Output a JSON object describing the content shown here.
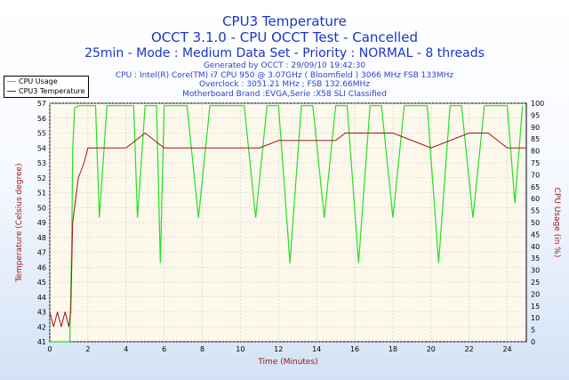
{
  "header": {
    "title": "CPU3 Temperature",
    "subtitle1": "OCCT 3.1.0 - CPU OCCT Test - Cancelled",
    "subtitle2": "25min - Mode : Medium Data Set - Priority : NORMAL - 8 threads",
    "info": [
      "Generated by OCCT : 29/09/10 19:42:30",
      "CPU : Intel(R) Core(TM) i7 CPU 950 @ 3.07GHz ( Bloomfield ) 3066 MHz FSB 133MHz",
      "Overclock : 3051.21 MHz ; FSB 132.66MHz",
      "Motherboard Brand :EVGA,Serie :X58 SLI Classified"
    ]
  },
  "colors": {
    "cpu_usage": "#22e022",
    "temperature": "#a01515",
    "plot_bg": "#fdf8ec",
    "axis_text": "#a01515",
    "title": "#1a35c8"
  },
  "chart_data": {
    "type": "line",
    "title": "CPU3 Temperature",
    "xlabel": "Time (Minutes)",
    "ylabel": "Temperature (Celsius degree)",
    "y2label": "CPU Usage (in %)",
    "xlim": [
      0,
      25
    ],
    "ylim": [
      41,
      57
    ],
    "y2lim": [
      0,
      100
    ],
    "x_ticks": [
      0,
      2,
      4,
      6,
      8,
      10,
      12,
      14,
      16,
      18,
      20,
      22,
      24
    ],
    "y_ticks": [
      41,
      42,
      43,
      44,
      45,
      46,
      47,
      48,
      49,
      50,
      51,
      52,
      53,
      54,
      55,
      56,
      57
    ],
    "y2_ticks": [
      0,
      5,
      10,
      15,
      20,
      25,
      30,
      35,
      40,
      45,
      50,
      55,
      60,
      65,
      70,
      75,
      80,
      85,
      90,
      95,
      100
    ],
    "grid": true,
    "legend_position": "top-left",
    "series": [
      {
        "name": "CPU Usage",
        "axis": "right",
        "x": [
          0,
          1.05,
          1.15,
          1.2,
          1.3,
          1.5,
          2.0,
          2.4,
          2.6,
          3.0,
          3.4,
          3.6,
          4.0,
          4.4,
          4.6,
          5.0,
          5.4,
          5.6,
          5.8,
          6.0,
          6.6,
          7.2,
          7.8,
          8.4,
          9.0,
          9.6,
          10.2,
          10.8,
          11.4,
          12.0,
          12.6,
          13.2,
          13.8,
          14.4,
          15.0,
          15.6,
          16.2,
          16.8,
          17.4,
          18.0,
          18.6,
          19.2,
          19.8,
          20.4,
          21.0,
          21.6,
          22.2,
          22.8,
          23.4,
          24.0,
          24.4,
          24.8
        ],
        "values": [
          0,
          0,
          40,
          80,
          98,
          99,
          99,
          99,
          52,
          99,
          99,
          99,
          99,
          99,
          52,
          99,
          99,
          99,
          33,
          99,
          99,
          99,
          52,
          99,
          99,
          99,
          99,
          52,
          99,
          99,
          33,
          99,
          99,
          52,
          99,
          99,
          33,
          99,
          99,
          52,
          99,
          99,
          99,
          33,
          99,
          99,
          52,
          99,
          99,
          99,
          58,
          99
        ]
      },
      {
        "name": "CPU3 Temperature",
        "axis": "left",
        "x": [
          0,
          0.2,
          0.4,
          0.6,
          0.8,
          1.0,
          1.1,
          1.2,
          1.3,
          1.5,
          1.8,
          2.0,
          2.3,
          2.6,
          3.0,
          3.5,
          4.0,
          4.5,
          5.0,
          5.5,
          6.0,
          7.0,
          8.0,
          9.0,
          10.0,
          11.0,
          12.0,
          13.0,
          14.0,
          15.0,
          15.5,
          16.0,
          17.0,
          18.0,
          19.0,
          20.0,
          21.0,
          22.0,
          23.0,
          24.0,
          24.5,
          25.0
        ],
        "values": [
          43,
          42,
          43,
          42,
          43,
          42,
          43,
          49,
          50,
          52,
          53,
          54,
          54,
          54,
          54,
          54,
          54,
          54.5,
          55,
          54.5,
          54,
          54,
          54,
          54,
          54,
          54,
          54.5,
          54.5,
          54.5,
          54.5,
          55,
          55,
          55,
          55,
          54.5,
          54,
          54.5,
          55,
          55,
          54,
          54,
          54
        ]
      }
    ]
  }
}
